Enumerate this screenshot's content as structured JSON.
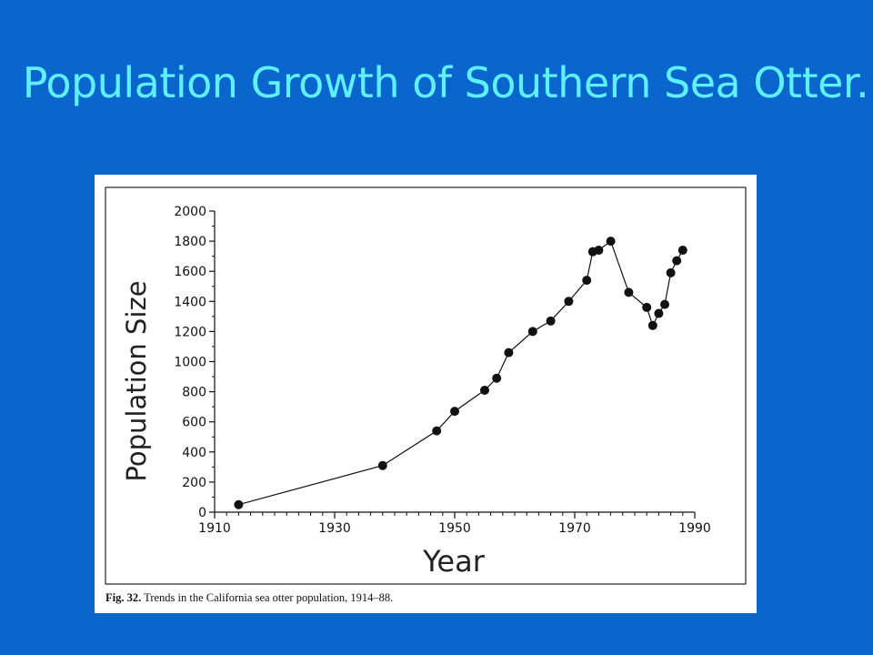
{
  "slide": {
    "title": "Population Growth of Southern Sea Otter."
  },
  "figure": {
    "caption_number": "Fig. 32.",
    "caption_text": "Trends in the California sea otter population, 1914–88."
  },
  "colors": {
    "background": "#0a66cc",
    "title": "#5ff0ff",
    "panel": "#ffffff",
    "ink": "#111111"
  },
  "chart_data": {
    "type": "line",
    "title": "",
    "xlabel": "Year",
    "ylabel": "Population Size",
    "xlim": [
      1910,
      1990
    ],
    "ylim": [
      0,
      2000
    ],
    "x_ticks": [
      1910,
      1930,
      1950,
      1970,
      1990
    ],
    "y_ticks": [
      0,
      200,
      400,
      600,
      800,
      1000,
      1200,
      1400,
      1600,
      1800,
      2000
    ],
    "grid": false,
    "legend": "none",
    "series": [
      {
        "marker": "filled-circle",
        "x": [
          1914,
          1938,
          1947,
          1950,
          1955,
          1957,
          1959,
          1963,
          1966,
          1969,
          1972,
          1973,
          1974,
          1976,
          1979,
          1982,
          1983,
          1984,
          1985,
          1986,
          1987,
          1988
        ],
        "y": [
          50,
          310,
          540,
          670,
          810,
          890,
          1060,
          1200,
          1270,
          1400,
          1540,
          1730,
          1740,
          1800,
          1460,
          1360,
          1240,
          1320,
          1380,
          1590,
          1670,
          1740
        ]
      }
    ]
  }
}
